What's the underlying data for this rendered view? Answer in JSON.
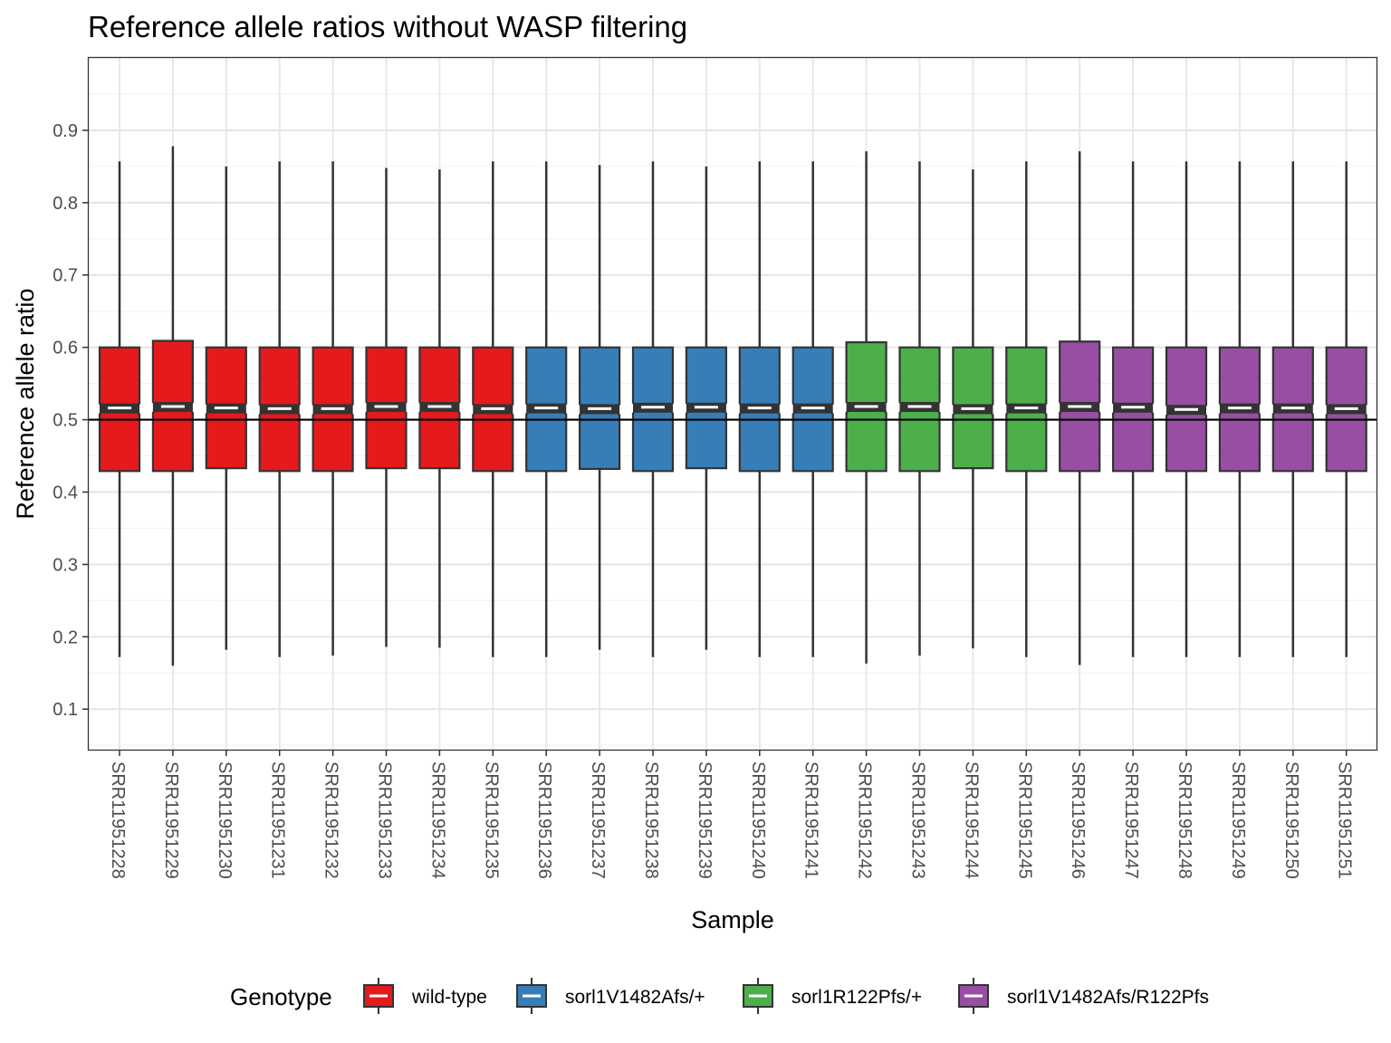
{
  "chart_data": {
    "type": "box",
    "title": "Reference allele ratios without WASP filtering",
    "xlabel": "Sample",
    "ylabel": "Reference allele ratio",
    "ylim": [
      0.0,
      1.0
    ],
    "yticks": [
      0.1,
      0.2,
      0.3,
      0.4,
      0.5,
      0.6,
      0.7,
      0.8,
      0.9
    ],
    "yticks_labels": [
      "0.1",
      "0.2",
      "0.3",
      "0.4",
      "0.5",
      "0.6",
      "0.7",
      "0.8",
      "0.9"
    ],
    "reference_line": 0.5,
    "grid": true,
    "notched": true,
    "legend": {
      "title": "Genotype",
      "position": "bottom",
      "entries": [
        {
          "label": "wild-type",
          "color": "#e41a1c"
        },
        {
          "label": "sorl1V1482Afs/+",
          "color": "#377eb8"
        },
        {
          "label": "sorl1R122Pfs/+",
          "color": "#4daf4a"
        },
        {
          "label": "sorl1V1482Afs/R122Pfs",
          "color": "#984ea3"
        }
      ]
    },
    "samples": [
      {
        "name": "SRR11951228",
        "group": 0,
        "lower": 0.172,
        "q1": 0.429,
        "median": 0.515,
        "q3": 0.6,
        "upper": 0.857
      },
      {
        "name": "SRR11951229",
        "group": 0,
        "lower": 0.16,
        "q1": 0.429,
        "median": 0.517,
        "q3": 0.609,
        "upper": 0.878
      },
      {
        "name": "SRR11951230",
        "group": 0,
        "lower": 0.182,
        "q1": 0.433,
        "median": 0.515,
        "q3": 0.6,
        "upper": 0.85
      },
      {
        "name": "SRR11951231",
        "group": 0,
        "lower": 0.172,
        "q1": 0.429,
        "median": 0.514,
        "q3": 0.6,
        "upper": 0.857
      },
      {
        "name": "SRR11951232",
        "group": 0,
        "lower": 0.174,
        "q1": 0.429,
        "median": 0.514,
        "q3": 0.6,
        "upper": 0.857
      },
      {
        "name": "SRR11951233",
        "group": 0,
        "lower": 0.186,
        "q1": 0.433,
        "median": 0.517,
        "q3": 0.6,
        "upper": 0.848
      },
      {
        "name": "SRR11951234",
        "group": 0,
        "lower": 0.185,
        "q1": 0.433,
        "median": 0.517,
        "q3": 0.6,
        "upper": 0.846
      },
      {
        "name": "SRR11951235",
        "group": 0,
        "lower": 0.172,
        "q1": 0.429,
        "median": 0.514,
        "q3": 0.6,
        "upper": 0.857
      },
      {
        "name": "SRR11951236",
        "group": 1,
        "lower": 0.172,
        "q1": 0.429,
        "median": 0.515,
        "q3": 0.6,
        "upper": 0.857
      },
      {
        "name": "SRR11951237",
        "group": 1,
        "lower": 0.182,
        "q1": 0.432,
        "median": 0.514,
        "q3": 0.6,
        "upper": 0.852
      },
      {
        "name": "SRR11951238",
        "group": 1,
        "lower": 0.172,
        "q1": 0.429,
        "median": 0.516,
        "q3": 0.6,
        "upper": 0.857
      },
      {
        "name": "SRR11951239",
        "group": 1,
        "lower": 0.182,
        "q1": 0.433,
        "median": 0.516,
        "q3": 0.6,
        "upper": 0.85
      },
      {
        "name": "SRR11951240",
        "group": 1,
        "lower": 0.172,
        "q1": 0.429,
        "median": 0.515,
        "q3": 0.6,
        "upper": 0.857
      },
      {
        "name": "SRR11951241",
        "group": 1,
        "lower": 0.172,
        "q1": 0.429,
        "median": 0.515,
        "q3": 0.6,
        "upper": 0.857
      },
      {
        "name": "SRR11951242",
        "group": 2,
        "lower": 0.163,
        "q1": 0.429,
        "median": 0.517,
        "q3": 0.607,
        "upper": 0.871
      },
      {
        "name": "SRR11951243",
        "group": 2,
        "lower": 0.174,
        "q1": 0.429,
        "median": 0.517,
        "q3": 0.6,
        "upper": 0.857
      },
      {
        "name": "SRR11951244",
        "group": 2,
        "lower": 0.184,
        "q1": 0.433,
        "median": 0.514,
        "q3": 0.6,
        "upper": 0.846
      },
      {
        "name": "SRR11951245",
        "group": 2,
        "lower": 0.172,
        "q1": 0.429,
        "median": 0.515,
        "q3": 0.6,
        "upper": 0.857
      },
      {
        "name": "SRR11951246",
        "group": 3,
        "lower": 0.161,
        "q1": 0.429,
        "median": 0.517,
        "q3": 0.608,
        "upper": 0.871
      },
      {
        "name": "SRR11951247",
        "group": 3,
        "lower": 0.172,
        "q1": 0.429,
        "median": 0.516,
        "q3": 0.6,
        "upper": 0.857
      },
      {
        "name": "SRR11951248",
        "group": 3,
        "lower": 0.172,
        "q1": 0.429,
        "median": 0.513,
        "q3": 0.6,
        "upper": 0.857
      },
      {
        "name": "SRR11951249",
        "group": 3,
        "lower": 0.172,
        "q1": 0.429,
        "median": 0.515,
        "q3": 0.6,
        "upper": 0.857
      },
      {
        "name": "SRR11951250",
        "group": 3,
        "lower": 0.172,
        "q1": 0.429,
        "median": 0.515,
        "q3": 0.6,
        "upper": 0.857
      },
      {
        "name": "SRR11951251",
        "group": 3,
        "lower": 0.172,
        "q1": 0.429,
        "median": 0.514,
        "q3": 0.6,
        "upper": 0.857
      }
    ]
  }
}
